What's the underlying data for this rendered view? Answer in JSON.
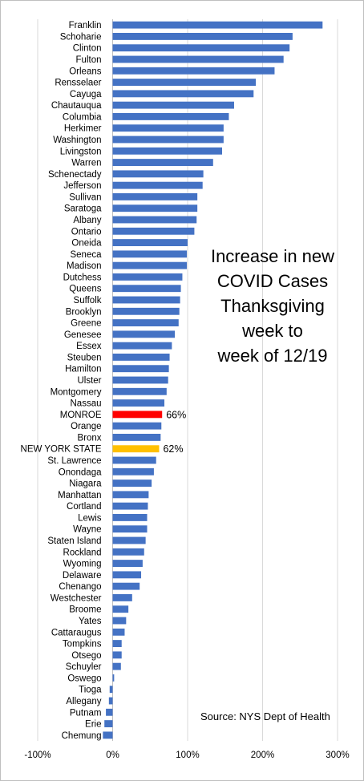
{
  "chart_data": {
    "type": "bar",
    "orientation": "horizontal",
    "title_lines": [
      "Increase in new",
      "COVID Cases",
      "Thanksgiving",
      "week to",
      "week of 12/19"
    ],
    "source": "Source: NYS Dept of Health",
    "xlim": [
      -100,
      300
    ],
    "xticks": [
      -100,
      0,
      100,
      200,
      300
    ],
    "xtick_labels": [
      "-100%",
      "0%",
      "100%",
      "200%",
      "300%"
    ],
    "grid": true,
    "colors": {
      "default": "#4472C4",
      "monroe": "#FF0000",
      "state": "#FFC000"
    },
    "categories": [
      "Franklin",
      "Schoharie",
      "Clinton",
      "Fulton",
      "Orleans",
      "Rensselaer",
      "Cayuga",
      "Chautauqua",
      "Columbia",
      "Herkimer",
      "Washington",
      "Livingston",
      "Warren",
      "Schenectady",
      "Jefferson",
      "Sullivan",
      "Saratoga",
      "Albany",
      "Ontario",
      "Oneida",
      "Seneca",
      "Madison",
      "Dutchess",
      "Queens",
      "Suffolk",
      "Brooklyn",
      "Greene",
      "Genesee",
      "Essex",
      "Steuben",
      "Hamilton",
      "Ulster",
      "Montgomery",
      "Nassau",
      "MONROE",
      "Orange",
      "Bronx",
      "NEW YORK STATE",
      "St. Lawrence",
      "Onondaga",
      "Niagara",
      "Manhattan",
      "Cortland",
      "Lewis",
      "Wayne",
      "Staten Island",
      "Rockland",
      "Wyoming",
      "Delaware",
      "Chenango",
      "Westchester",
      "Broome",
      "Yates",
      "Cattaraugus",
      "Tompkins",
      "Otsego",
      "Schuyler",
      "Oswego",
      "Tioga",
      "Allegany",
      "Putnam",
      "Erie",
      "Chemung"
    ],
    "values": [
      280,
      240,
      236,
      228,
      216,
      191,
      188,
      162,
      155,
      148,
      148,
      146,
      134,
      121,
      120,
      113,
      113,
      112,
      109,
      100,
      99,
      99,
      93,
      91,
      90,
      89,
      88,
      83,
      79,
      76,
      75,
      74,
      72,
      69,
      66,
      65,
      64,
      62,
      58,
      55,
      52,
      48,
      47,
      46,
      46,
      44,
      42,
      40,
      38,
      36,
      26,
      21,
      18,
      16,
      12,
      12,
      11,
      2,
      -4,
      -5,
      -9,
      -11,
      -13
    ],
    "highlight": {
      "MONROE": "monroe",
      "NEW YORK STATE": "state"
    },
    "data_labels": {
      "MONROE": "66%",
      "NEW YORK STATE": "62%"
    }
  }
}
